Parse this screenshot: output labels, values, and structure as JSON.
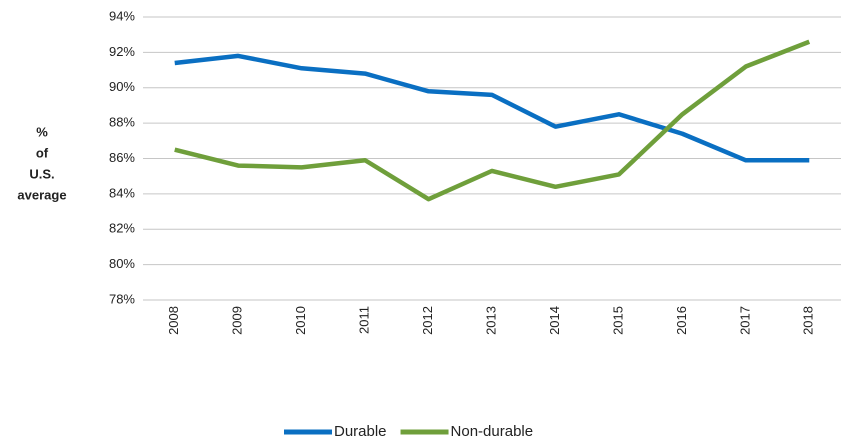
{
  "chart_data": {
    "type": "line",
    "ylabel": [
      "%",
      "of",
      "U.S.",
      "average"
    ],
    "categories": [
      "2008",
      "2009",
      "2010",
      "2011",
      "2012",
      "2013",
      "2014",
      "2015",
      "2016",
      "2017",
      "2018"
    ],
    "series": [
      {
        "name": "Durable",
        "color": "#0a6fc2",
        "values": [
          91.4,
          91.8,
          91.1,
          90.8,
          89.8,
          89.6,
          87.8,
          88.5,
          87.4,
          85.9,
          85.9
        ]
      },
      {
        "name": "Non-durable",
        "color": "#6f9f3b",
        "values": [
          86.5,
          85.6,
          85.5,
          85.9,
          83.7,
          85.3,
          84.4,
          85.1,
          88.5,
          91.2,
          92.6
        ]
      }
    ],
    "ylim": [
      78,
      94
    ],
    "yticks": [
      {
        "value": 78,
        "label": "78%"
      },
      {
        "value": 80,
        "label": "80%"
      },
      {
        "value": 82,
        "label": "82%"
      },
      {
        "value": 84,
        "label": "84%"
      },
      {
        "value": 86,
        "label": "86%"
      },
      {
        "value": 88,
        "label": "88%"
      },
      {
        "value": 90,
        "label": "90%"
      },
      {
        "value": 92,
        "label": "92%"
      },
      {
        "value": 94,
        "label": "94%"
      }
    ],
    "grid": true,
    "legend": "bottom"
  }
}
